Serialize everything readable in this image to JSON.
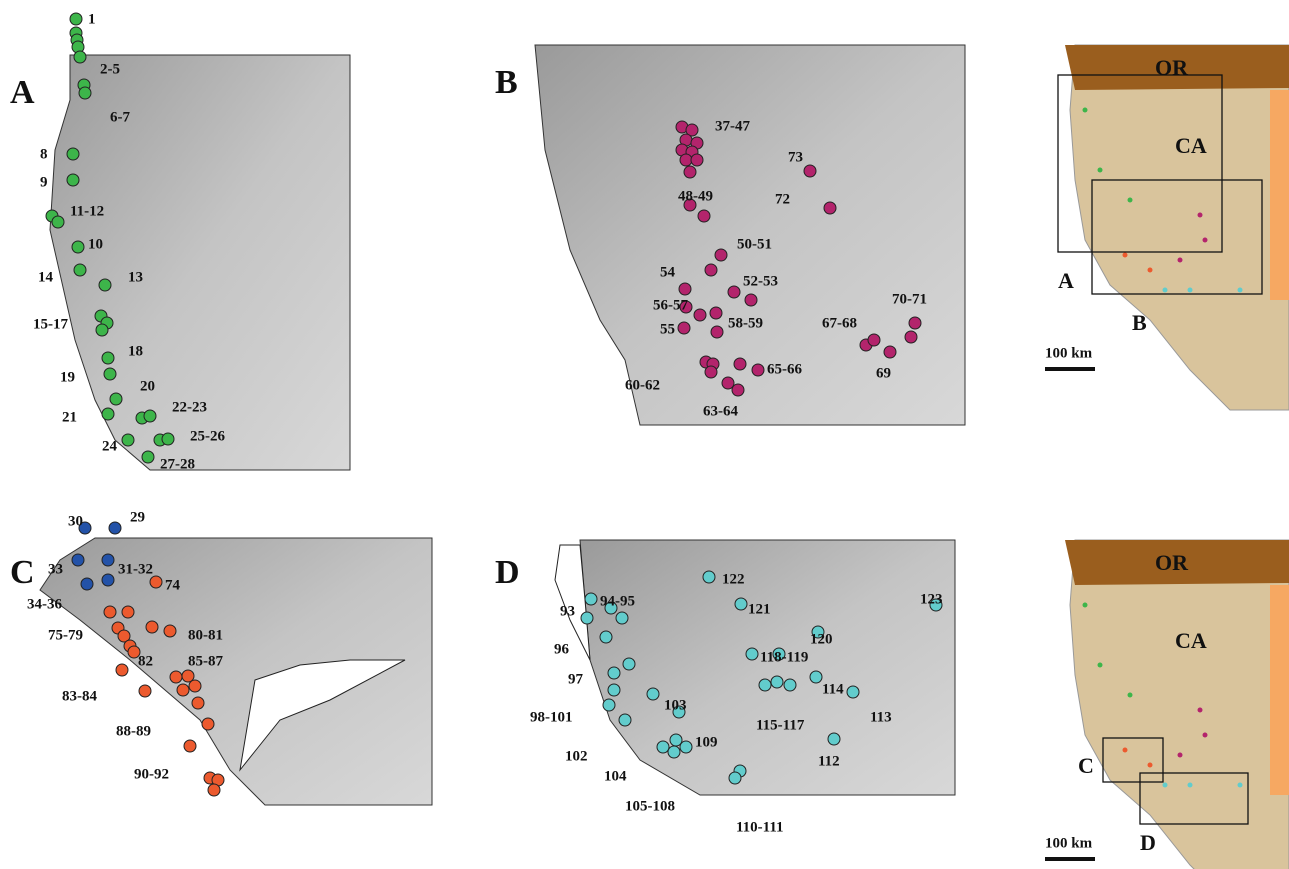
{
  "panels": [
    {
      "letter": "A",
      "labels": [
        "1",
        "2-5",
        "6-7",
        "8",
        "9",
        "11-12",
        "10",
        "14",
        "13",
        "15-17",
        "18",
        "19",
        "20",
        "21",
        "22-23",
        "25-26",
        "24",
        "27-28"
      ]
    },
    {
      "letter": "B",
      "labels": [
        "37-47",
        "73",
        "48-49",
        "72",
        "50-51",
        "54",
        "52-53",
        "56-57",
        "70-71",
        "58-59",
        "55",
        "67-68",
        "60-62",
        "65-66",
        "69",
        "63-64"
      ]
    },
    {
      "letter": "C",
      "labels": [
        "30",
        "29",
        "33",
        "31-32",
        "34-36",
        "74",
        "75-79",
        "80-81",
        "82",
        "85-87",
        "83-84",
        "88-89",
        "90-92"
      ]
    },
    {
      "letter": "D",
      "labels": [
        "122",
        "93",
        "94-95",
        "121",
        "123",
        "120",
        "96",
        "118-119",
        "97",
        "114",
        "103",
        "98-101",
        "115-117",
        "113",
        "102",
        "109",
        "104",
        "112",
        "105-108",
        "110-111"
      ]
    }
  ],
  "insets": [
    {
      "north": "OR",
      "state": "CA",
      "boxes": [
        "A",
        "B"
      ],
      "scale": "100 km"
    },
    {
      "north": "OR",
      "state": "CA",
      "boxes": [
        "C",
        "D"
      ],
      "scale": "100 km"
    }
  ]
}
